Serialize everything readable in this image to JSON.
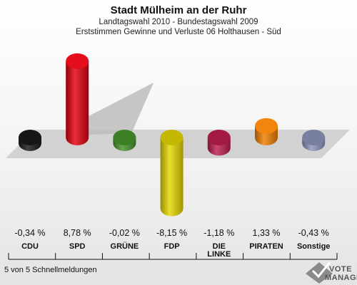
{
  "header": {
    "title": "Stadt Mülheim an der Ruhr",
    "subtitle1": "Landtagswahl 2010 - Bundestagswahl 2009",
    "subtitle2": "Erststimmen Gewinne und Verluste 06 Holthausen - Süd"
  },
  "footer": {
    "status": "5 von 5 Schnellmeldungen"
  },
  "logo": {
    "line1": "VOTE",
    "line2": "MANAGER"
  },
  "chart_data": {
    "type": "bar",
    "categories": [
      "CDU",
      "SPD",
      "GRÜNE",
      "FDP",
      "DIE LINKE",
      "PIRATEN",
      "Sonstige"
    ],
    "category_lines": [
      [
        "CDU"
      ],
      [
        "SPD"
      ],
      [
        "GRÜNE"
      ],
      [
        "FDP"
      ],
      [
        "DIE",
        "LINKE"
      ],
      [
        "PIRATEN"
      ],
      [
        "Sonstige"
      ]
    ],
    "values": [
      -0.34,
      8.78,
      -0.02,
      -8.15,
      -1.18,
      1.33,
      -0.43
    ],
    "value_labels": [
      "-0,34 %",
      "8,78 %",
      "-0,02 %",
      "-8,15 %",
      "-1,18 %",
      "1,33 %",
      "-0,43 %"
    ],
    "colors": [
      "#1a1a1a",
      "#e3000f",
      "#46962b",
      "#e6d800",
      "#be1e50",
      "#f08000",
      "#8d95bb"
    ],
    "ylim": [
      -9,
      9
    ],
    "grid": false,
    "legend": "none"
  }
}
